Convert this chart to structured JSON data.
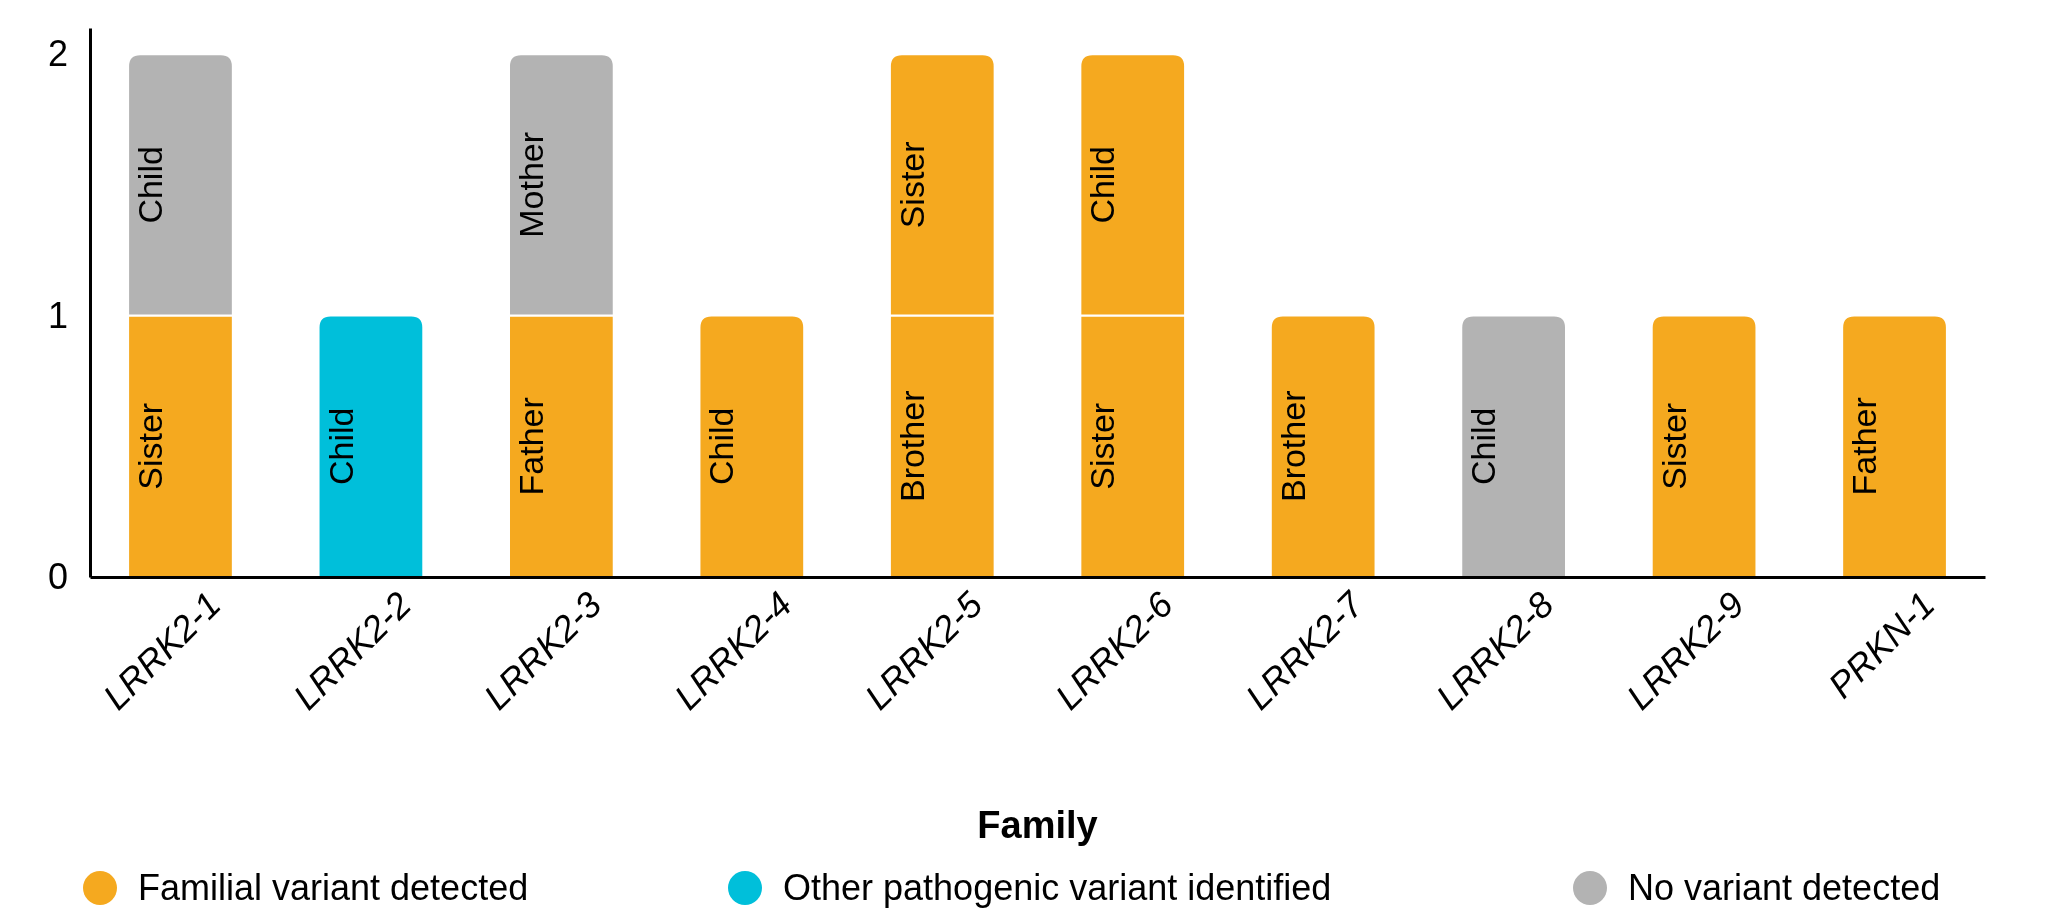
{
  "chart_data": {
    "type": "bar",
    "stacked": true,
    "xlabel": "Family",
    "categories": [
      "LRRK2-1",
      "LRRK2-2",
      "LRRK2-3",
      "LRRK2-4",
      "LRRK2-5",
      "LRRK2-6",
      "LRRK2-7",
      "LRRK2-8",
      "LRRK2-9",
      "PRKN-1"
    ],
    "ylim": [
      0,
      2.1
    ],
    "yticks": [
      0,
      1,
      2
    ],
    "legend": "bottom",
    "grid": false,
    "series": [
      {
        "name": "Familial variant detected",
        "color": "#f5a91f",
        "values": [
          1,
          0,
          1,
          1,
          1,
          1,
          1,
          0,
          1,
          1
        ],
        "value_labels": [
          "Sister",
          null,
          "Father",
          "Child",
          "Brother",
          "Sister",
          "Brother",
          null,
          "Sister",
          "Father"
        ]
      },
      {
        "name": "Other pathogenic variant identified",
        "color": "#00bfda",
        "values": [
          0,
          1,
          0,
          0,
          0,
          0,
          0,
          0,
          0,
          0
        ],
        "value_labels": [
          null,
          "Child",
          null,
          null,
          null,
          null,
          null,
          null,
          null,
          null
        ]
      },
      {
        "name": "No variant detected",
        "color": "#b3b3b3",
        "values": [
          1,
          0,
          1,
          0,
          0,
          0,
          0,
          1,
          0,
          0
        ],
        "value_labels": [
          "Child",
          null,
          "Mother",
          null,
          null,
          null,
          null,
          "Child",
          null,
          null
        ]
      },
      {
        "color": "#f5a91f",
        "values": [
          0,
          0,
          0,
          0,
          1,
          1,
          0,
          0,
          0,
          0
        ],
        "value_labels": [
          null,
          null,
          null,
          null,
          "Sister",
          "Child",
          null,
          null,
          null,
          null
        ]
      }
    ]
  }
}
